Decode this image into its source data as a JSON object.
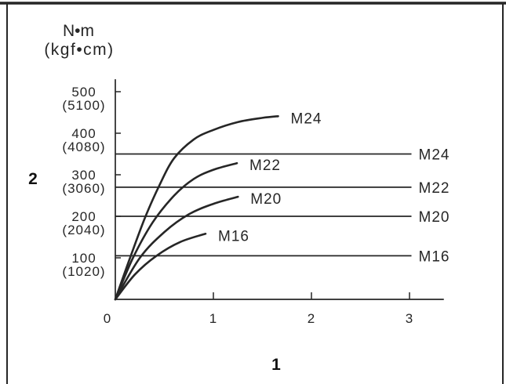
{
  "colors": {
    "ink": "#262626",
    "background": "#ffffff"
  },
  "chart_data": {
    "type": "line",
    "xlabel": "1",
    "ylabel": "2",
    "y_unit": "N•m",
    "y_unit_alt": "(kgf•cm)",
    "xlim": [
      0,
      3.35
    ],
    "ylim": [
      0,
      530
    ],
    "grid": false,
    "x_ticks": [
      {
        "value": 0,
        "label": "0"
      },
      {
        "value": 1,
        "label": "1"
      },
      {
        "value": 2,
        "label": "2"
      },
      {
        "value": 3,
        "label": "3"
      }
    ],
    "y_ticks": [
      {
        "value": 100,
        "label": "100",
        "label_alt": "(1020)"
      },
      {
        "value": 200,
        "label": "200",
        "label_alt": "(2040)"
      },
      {
        "value": 300,
        "label": "300",
        "label_alt": "(3060)"
      },
      {
        "value": 400,
        "label": "400",
        "label_alt": "(4080)"
      },
      {
        "value": 500,
        "label": "500",
        "label_alt": "(5100)"
      }
    ],
    "series": [
      {
        "name": "M24",
        "x": [
          0,
          0.15,
          0.3,
          0.45,
          0.6,
          0.8,
          1.0,
          1.25,
          1.5,
          1.66
        ],
        "y": [
          0,
          100,
          195,
          275,
          340,
          385,
          408,
          427,
          437,
          441
        ]
      },
      {
        "name": "M22",
        "x": [
          0,
          0.18,
          0.38,
          0.6,
          0.8,
          1.0,
          1.24
        ],
        "y": [
          0,
          100,
          185,
          250,
          290,
          312,
          328
        ]
      },
      {
        "name": "M20",
        "x": [
          0,
          0.25,
          0.5,
          0.75,
          1.0,
          1.25
        ],
        "y": [
          0,
          100,
          162,
          205,
          230,
          247
        ]
      },
      {
        "name": "M16",
        "x": [
          0,
          0.2,
          0.42,
          0.66,
          0.92
        ],
        "y": [
          0,
          60,
          105,
          138,
          158
        ]
      }
    ],
    "reference_lines": [
      {
        "name": "M24",
        "y": 350
      },
      {
        "name": "M22",
        "y": 270
      },
      {
        "name": "M20",
        "y": 200
      },
      {
        "name": "M16",
        "y": 105
      }
    ]
  }
}
